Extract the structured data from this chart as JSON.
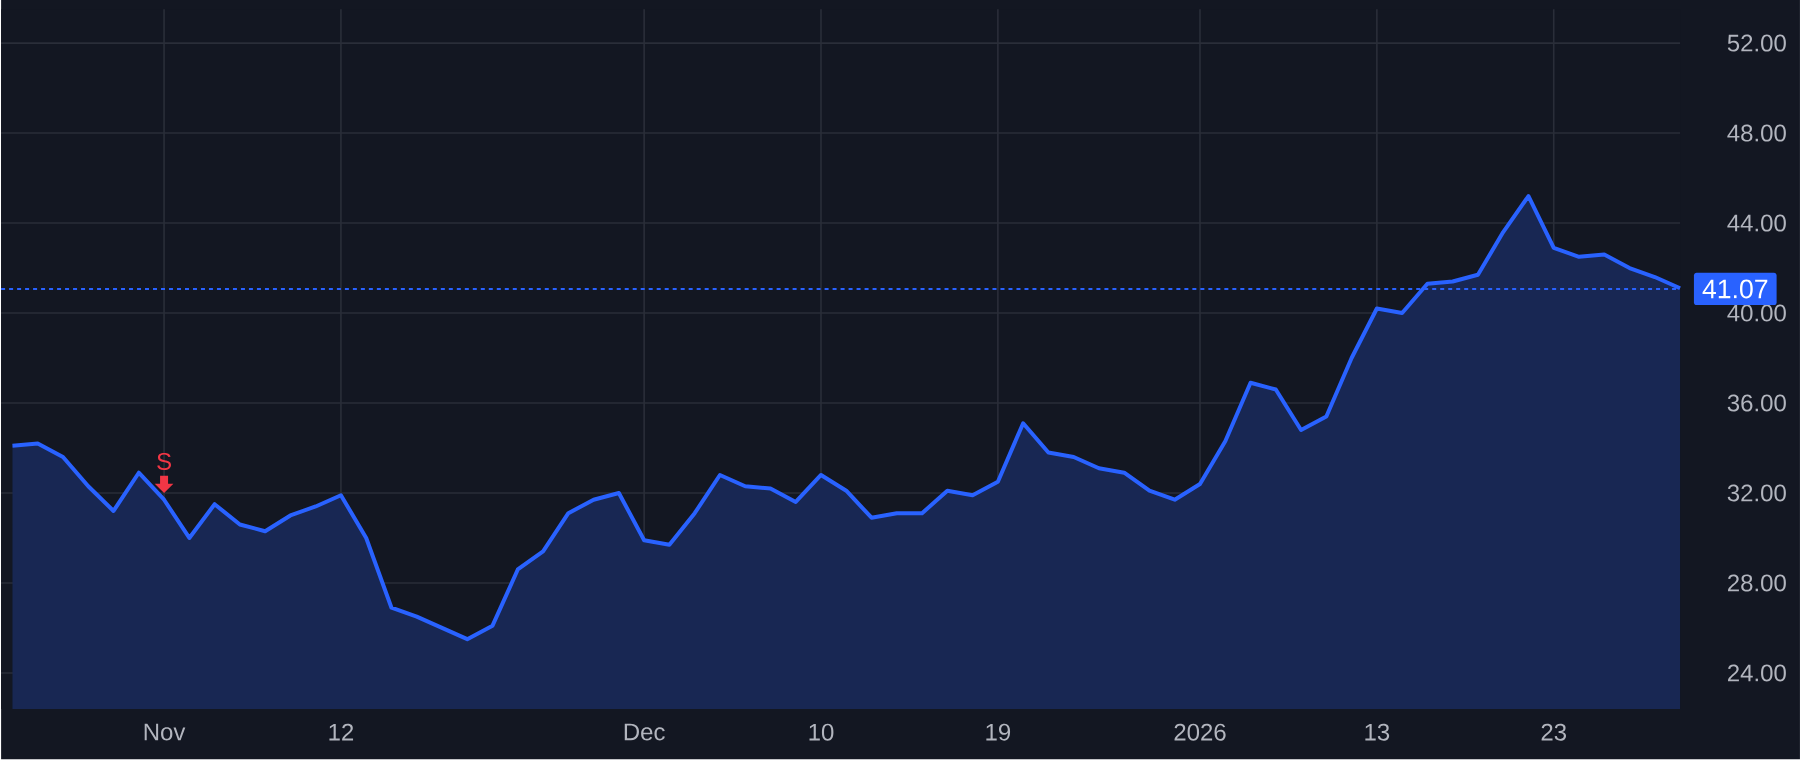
{
  "chart_data": {
    "type": "area",
    "categories": [
      null,
      null,
      null,
      null,
      null,
      null,
      "Nov",
      null,
      null,
      null,
      null,
      null,
      null,
      "12",
      null,
      null,
      null,
      null,
      null,
      null,
      null,
      null,
      null,
      null,
      null,
      "Dec",
      null,
      null,
      null,
      null,
      null,
      null,
      "10",
      null,
      null,
      null,
      null,
      null,
      null,
      "19",
      null,
      null,
      null,
      null,
      null,
      null,
      null,
      "2026",
      null,
      null,
      null,
      null,
      null,
      null,
      "13",
      null,
      null,
      null,
      null,
      null,
      null,
      "23",
      null,
      null,
      null,
      null,
      null
    ],
    "series": [
      {
        "color": "#2962ff",
        "values": [
          34.1,
          34.2,
          33.6,
          32.3,
          31.2,
          32.9,
          31.7,
          30.0,
          31.5,
          30.6,
          30.3,
          31.0,
          31.4,
          31.9,
          30.0,
          26.9,
          26.5,
          26.0,
          25.5,
          26.1,
          28.6,
          29.4,
          31.1,
          31.7,
          32.0,
          29.9,
          29.7,
          31.1,
          32.8,
          32.3,
          32.2,
          31.6,
          32.8,
          32.1,
          30.9,
          31.1,
          31.1,
          32.1,
          31.9,
          32.5,
          35.1,
          33.8,
          33.6,
          33.1,
          32.9,
          32.1,
          31.7,
          32.4,
          34.3,
          36.9,
          36.6,
          34.8,
          35.4,
          38.0,
          40.2,
          40.0,
          41.3,
          41.4,
          41.7,
          43.6,
          45.2,
          42.9,
          42.5,
          42.6,
          42.0,
          41.6,
          41.1
        ]
      }
    ],
    "ylim": [
      22.4,
      53.5
    ],
    "yticks": [
      {
        "value": 24,
        "label": "24.00"
      },
      {
        "value": 28,
        "label": "28.00"
      },
      {
        "value": 32,
        "label": "32.00"
      },
      {
        "value": 36,
        "label": "36.00"
      },
      {
        "value": 40,
        "label": "40.00"
      },
      {
        "value": 44,
        "label": "44.00"
      },
      {
        "value": 48,
        "label": "48.00"
      },
      {
        "value": 52,
        "label": "52.00"
      }
    ],
    "grid": true,
    "ref_lines": [
      {
        "axis": "y",
        "value": 41.07,
        "label": "41.07",
        "color": "#2962ff",
        "line_style": "dotted"
      }
    ],
    "annotations": [
      {
        "text": "S",
        "x": "Nov",
        "y": 31.7
      }
    ]
  }
}
